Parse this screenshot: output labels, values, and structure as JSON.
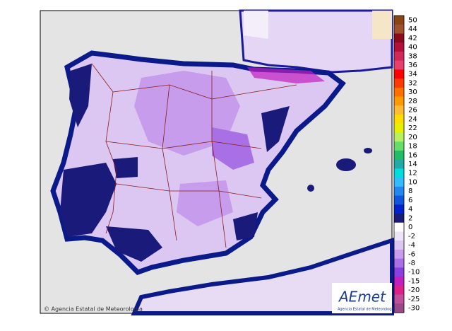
{
  "legend": {
    "levels": [
      {
        "label": 50,
        "color": "#8b4513"
      },
      {
        "label": 44,
        "color": "#a0522d"
      },
      {
        "label": 42,
        "color": "#8b0a1e"
      },
      {
        "label": 40,
        "color": "#b0103a"
      },
      {
        "label": 38,
        "color": "#d0285a"
      },
      {
        "label": 36,
        "color": "#e8406a"
      },
      {
        "label": 34,
        "color": "#ff0000"
      },
      {
        "label": 32,
        "color": "#ff3a00"
      },
      {
        "label": 30,
        "color": "#ff7000"
      },
      {
        "label": 28,
        "color": "#ff9a00"
      },
      {
        "label": 26,
        "color": "#ffbb33"
      },
      {
        "label": 24,
        "color": "#ffdd00"
      },
      {
        "label": 22,
        "color": "#e6f000"
      },
      {
        "label": 20,
        "color": "#b8f060"
      },
      {
        "label": 18,
        "color": "#66dd66"
      },
      {
        "label": 16,
        "color": "#22bb66"
      },
      {
        "label": 14,
        "color": "#22aaaa"
      },
      {
        "label": 12,
        "color": "#00dddd"
      },
      {
        "label": 10,
        "color": "#33bbff"
      },
      {
        "label": 8,
        "color": "#2288ee"
      },
      {
        "label": 6,
        "color": "#1155dd"
      },
      {
        "label": 4,
        "color": "#0022cc"
      },
      {
        "label": 2,
        "color": "#1a1a7a"
      },
      {
        "label": 0,
        "color": "#ffffff"
      },
      {
        "label": -2,
        "color": "#eee4f7"
      },
      {
        "label": -4,
        "color": "#dcc6f2"
      },
      {
        "label": -6,
        "color": "#c79ced"
      },
      {
        "label": -8,
        "color": "#a970e6"
      },
      {
        "label": -10,
        "color": "#8a3fe0"
      },
      {
        "label": -15,
        "color": "#c020c0"
      },
      {
        "label": -20,
        "color": "#e0208a"
      },
      {
        "label": -25,
        "color": "#c0509a"
      },
      {
        "label": -30,
        "color": "#9a4a8a"
      }
    ]
  },
  "copyright": "© Agencia Estatal de Meteorología",
  "logo": {
    "name": "AEmet",
    "subtitle": "Agencia Estatal de Meteorología"
  }
}
